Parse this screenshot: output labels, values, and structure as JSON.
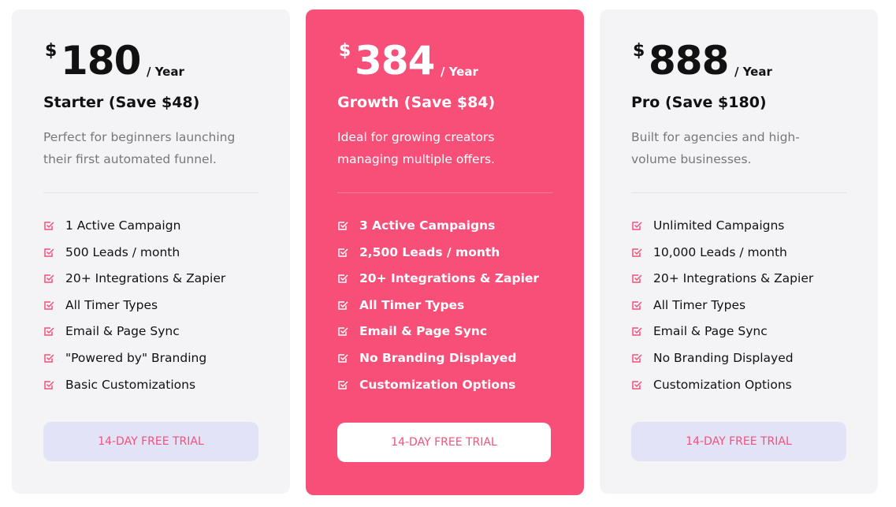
{
  "plans": [
    {
      "currency": "$",
      "price": "180",
      "period": "/ Year",
      "name": "Starter (Save $48)",
      "description": "Perfect for beginners launching their first automated funnel.",
      "features": [
        "1 Active Campaign",
        "500 Leads / month",
        "20+ Integrations & Zapier",
        "All Timer Types",
        "Email & Page Sync",
        "\"Powered by\" Branding",
        "Basic Customizations"
      ],
      "cta": "14-DAY FREE TRIAL"
    },
    {
      "currency": "$",
      "price": "384",
      "period": "/ Year",
      "name": "Growth (Save $84)",
      "description": "Ideal for growing creators managing multiple offers.",
      "features": [
        "3 Active Campaigns",
        "2,500 Leads / month",
        "20+ Integrations & Zapier",
        "All Timer Types",
        "Email & Page Sync",
        "No Branding Displayed",
        "Customization Options"
      ],
      "cta": "14-DAY FREE TRIAL"
    },
    {
      "currency": "$",
      "price": "888",
      "period": "/ Year",
      "name": "Pro (Save $180)",
      "description": "Built for agencies and high-volume businesses.",
      "features": [
        "Unlimited Campaigns",
        "10,000 Leads / month",
        "20+ Integrations & Zapier",
        "All Timer Types",
        "Email & Page Sync",
        "No Branding Displayed",
        "Customization Options"
      ],
      "cta": "14-DAY FREE TRIAL"
    }
  ]
}
